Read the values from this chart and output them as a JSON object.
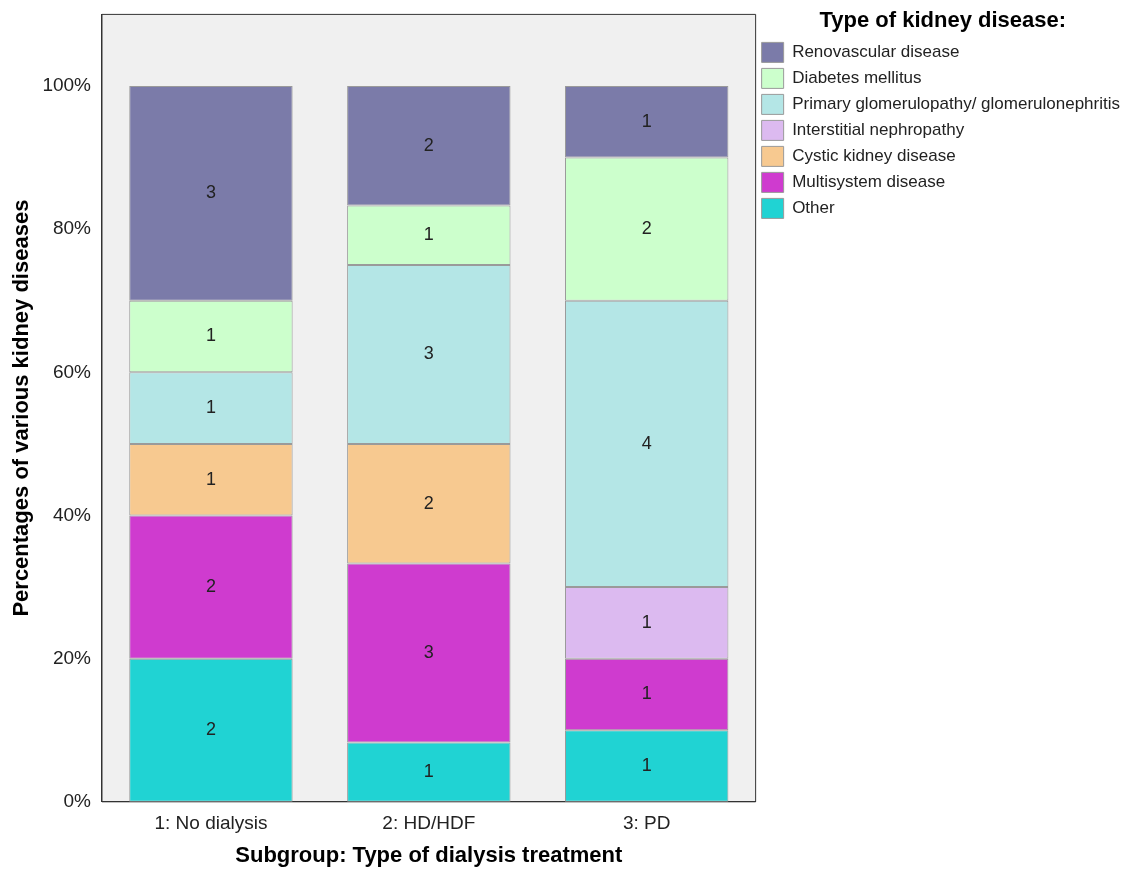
{
  "chart_data": {
    "type": "bar",
    "stacked": true,
    "xlabel": "Subgroup: Type of dialysis treatment",
    "ylabel": "Percentages of various kidney diseases",
    "legend_title": "Type of kidney disease:",
    "legend": "right",
    "grid": false,
    "categories": [
      "1: No dialysis",
      "2: HD/HDF",
      "3: PD"
    ],
    "ylim": [
      0,
      110
    ],
    "yticks": [
      {
        "value": 0,
        "label": "0%"
      },
      {
        "value": 20,
        "label": "20%"
      },
      {
        "value": 40,
        "label": "40%"
      },
      {
        "value": 60,
        "label": "60%"
      },
      {
        "value": 80,
        "label": "80%"
      },
      {
        "value": 100,
        "label": "100%"
      }
    ],
    "series": [
      {
        "name": "Other",
        "color": "#20d3d3",
        "values": [
          20,
          8.3,
          10
        ]
      },
      {
        "name": "Multisystem disease",
        "color": "#cf3bcf",
        "values": [
          20,
          25,
          10
        ]
      },
      {
        "name": "Cystic kidney disease",
        "color": "#f7c990",
        "values": [
          10,
          16.7,
          0
        ]
      },
      {
        "name": "Interstitial nephropathy",
        "color": "#dcbaf0",
        "values": [
          0,
          0,
          10
        ]
      },
      {
        "name": "Primary glomerulopathy/ glomerulonephritis",
        "color": "#b4e6e6",
        "values": [
          10,
          25,
          40
        ]
      },
      {
        "name": "Diabetes mellitus",
        "color": "#ccffcc",
        "values": [
          10,
          8.3,
          20
        ]
      },
      {
        "name": "Renovascular disease",
        "color": "#7b7ba9",
        "values": [
          30,
          16.7,
          10
        ]
      }
    ],
    "annotations": [
      "2",
      "2",
      "1",
      "1",
      "1",
      "3",
      "1",
      "3",
      "2",
      "3",
      "1",
      "2",
      "1",
      "1",
      "1",
      "4",
      "2",
      "1"
    ]
  }
}
